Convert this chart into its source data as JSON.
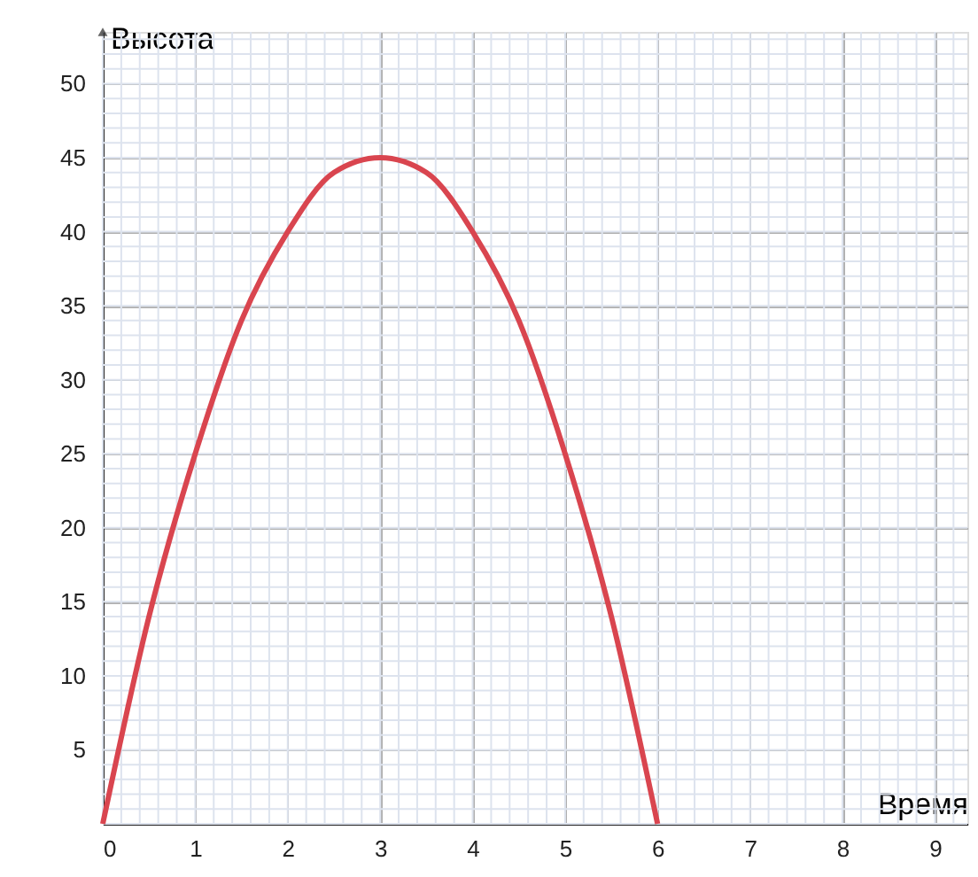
{
  "chart_data": {
    "type": "line",
    "xlabel": "Время",
    "ylabel": "Высота",
    "x": [
      0,
      0.5,
      1,
      1.5,
      2,
      2.5,
      3,
      3.5,
      4,
      4.5,
      5,
      5.5,
      6
    ],
    "series": [
      {
        "color": "#d9454f",
        "values": [
          0,
          14,
          25,
          34,
          40,
          44,
          45,
          44,
          40,
          34,
          25,
          14,
          0
        ]
      }
    ],
    "xlim": [
      0,
      9.35
    ],
    "ylim": [
      0,
      53.5
    ],
    "xticks": [
      0,
      1,
      2,
      3,
      4,
      5,
      6,
      7,
      8,
      9
    ],
    "yticks": [
      5,
      10,
      15,
      20,
      25,
      30,
      35,
      40,
      45,
      50
    ],
    "grid": true,
    "marker": "none",
    "line_style": "solid"
  }
}
